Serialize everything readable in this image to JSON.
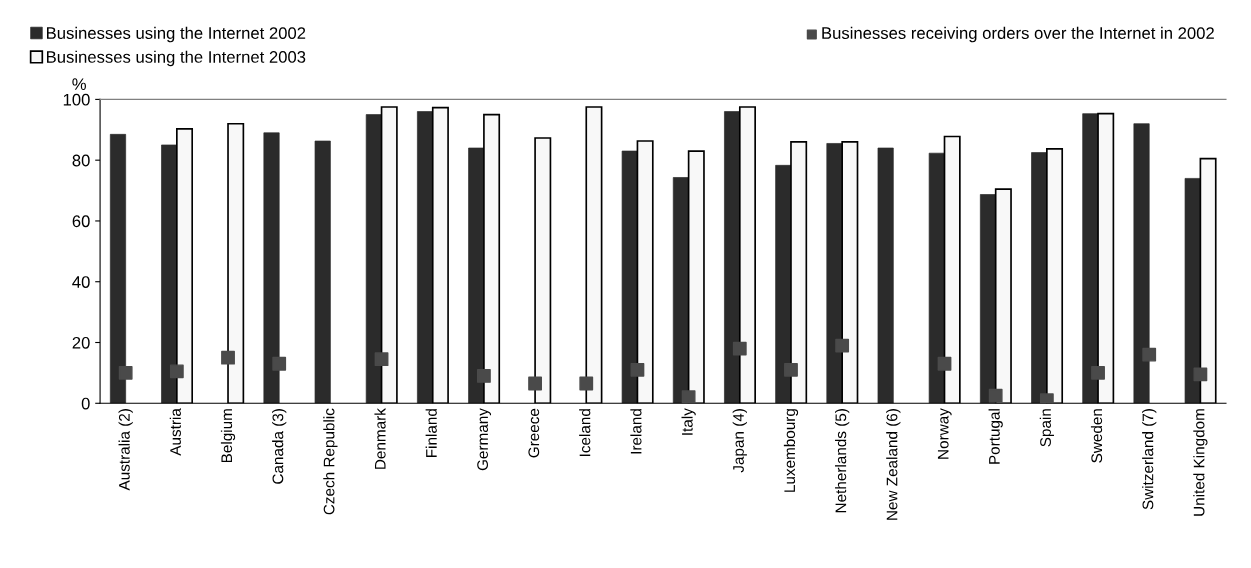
{
  "chart_data": {
    "type": "bar",
    "ylabel": "%",
    "categories": [
      "Australia (2)",
      "Austria",
      "Belgium",
      "Canada (3)",
      "Czech Republic",
      "Denmark",
      "Finland",
      "Germany",
      "Greece",
      "Iceland",
      "Ireland",
      "Italy",
      "Japan (4)",
      "Luxembourg",
      "Netherlands (5)",
      "New Zealand (6)",
      "Norway",
      "Portugal",
      "Spain",
      "Sweden",
      "Switzerland (7)",
      "United Kingdom"
    ],
    "series": [
      {
        "name": "Businesses using the Internet 2002",
        "color": "#2b2b2b",
        "values": [
          88.5,
          85,
          null,
          89,
          86.3,
          95,
          96,
          84,
          null,
          null,
          83,
          74.3,
          96,
          78.3,
          85.5,
          84,
          82.3,
          68.7,
          82.5,
          95.3,
          92,
          74
        ]
      },
      {
        "name": "Businesses using the Internet 2003",
        "color": "#f8f8f8",
        "values": [
          null,
          90.3,
          92,
          null,
          null,
          97.5,
          97.3,
          95,
          87.3,
          97.5,
          86.3,
          83,
          97.5,
          86,
          86,
          null,
          87.8,
          70.5,
          83.7,
          95.3,
          null,
          80.5
        ]
      },
      {
        "name": "Businesses receiving orders over the Internet in 2002",
        "type": "scatter",
        "marker": "square",
        "color": "#4a4a4a",
        "values": [
          10,
          10.5,
          15,
          13,
          null,
          14.5,
          null,
          9,
          6.5,
          6.5,
          11,
          2,
          18,
          11,
          19,
          null,
          13,
          2.5,
          1,
          10,
          16,
          9.5
        ]
      }
    ],
    "ylim": [
      0,
      100
    ],
    "yticks": [
      0,
      20,
      40,
      60,
      80,
      100
    ],
    "grid": false,
    "legend": "top"
  }
}
